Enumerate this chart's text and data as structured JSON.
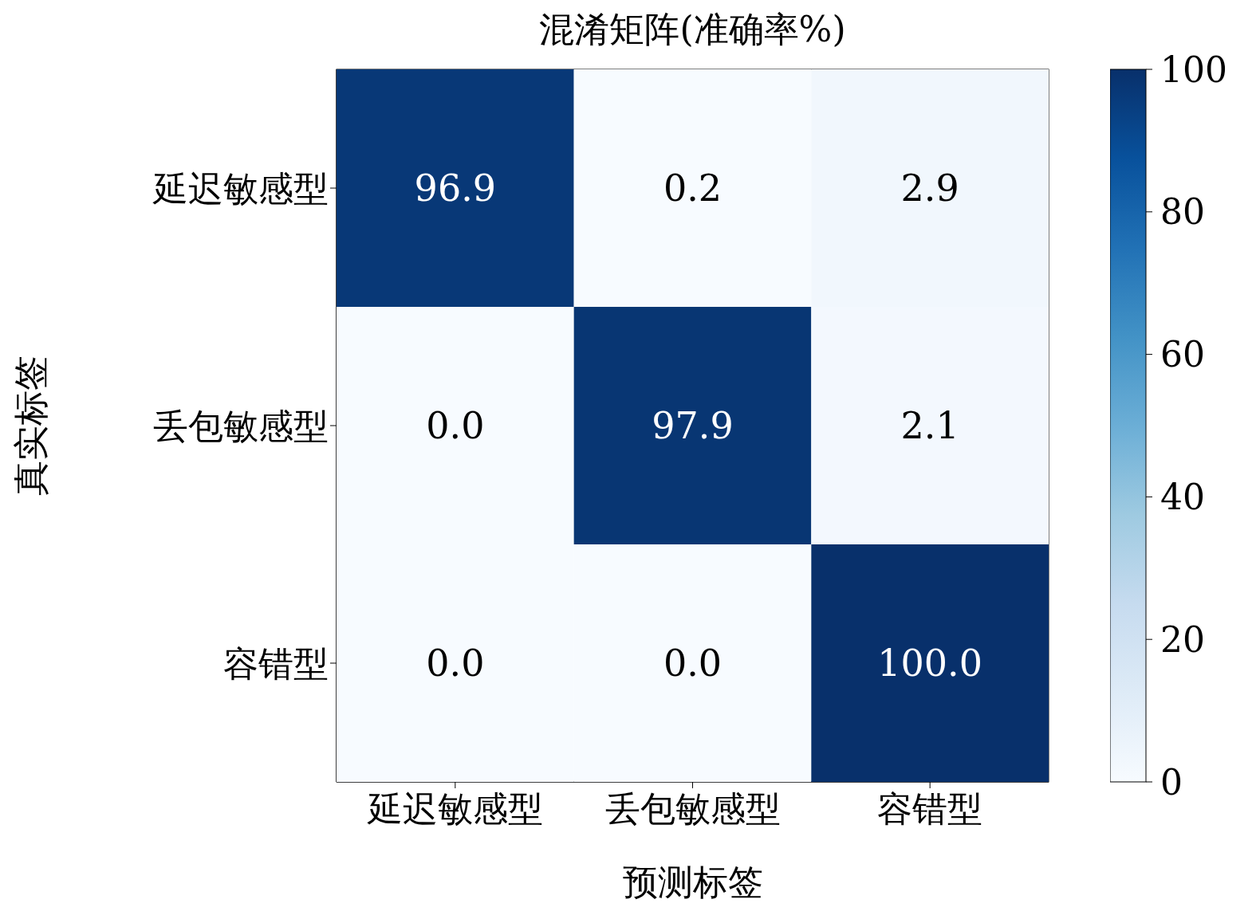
{
  "chart_data": {
    "type": "heatmap",
    "title": "混淆矩阵(准确率%)",
    "xlabel": "预测标签",
    "ylabel": "真实标签",
    "categories": [
      "延迟敏感型",
      "丢包敏感型",
      "容错型"
    ],
    "y_categories": [
      "延迟敏感型",
      "丢包敏感型",
      "容错型"
    ],
    "cells": [
      [
        96.9,
        0.2,
        2.9
      ],
      [
        0.0,
        97.9,
        2.1
      ],
      [
        0.0,
        0.0,
        100.0
      ]
    ],
    "cell_labels": [
      [
        "96.9",
        "0.2",
        "2.9"
      ],
      [
        "0.0",
        "97.9",
        "2.1"
      ],
      [
        "0.0",
        "0.0",
        "100.0"
      ]
    ],
    "clim": [
      0,
      100
    ],
    "cticks": [
      0,
      20,
      40,
      60,
      80,
      100
    ]
  }
}
